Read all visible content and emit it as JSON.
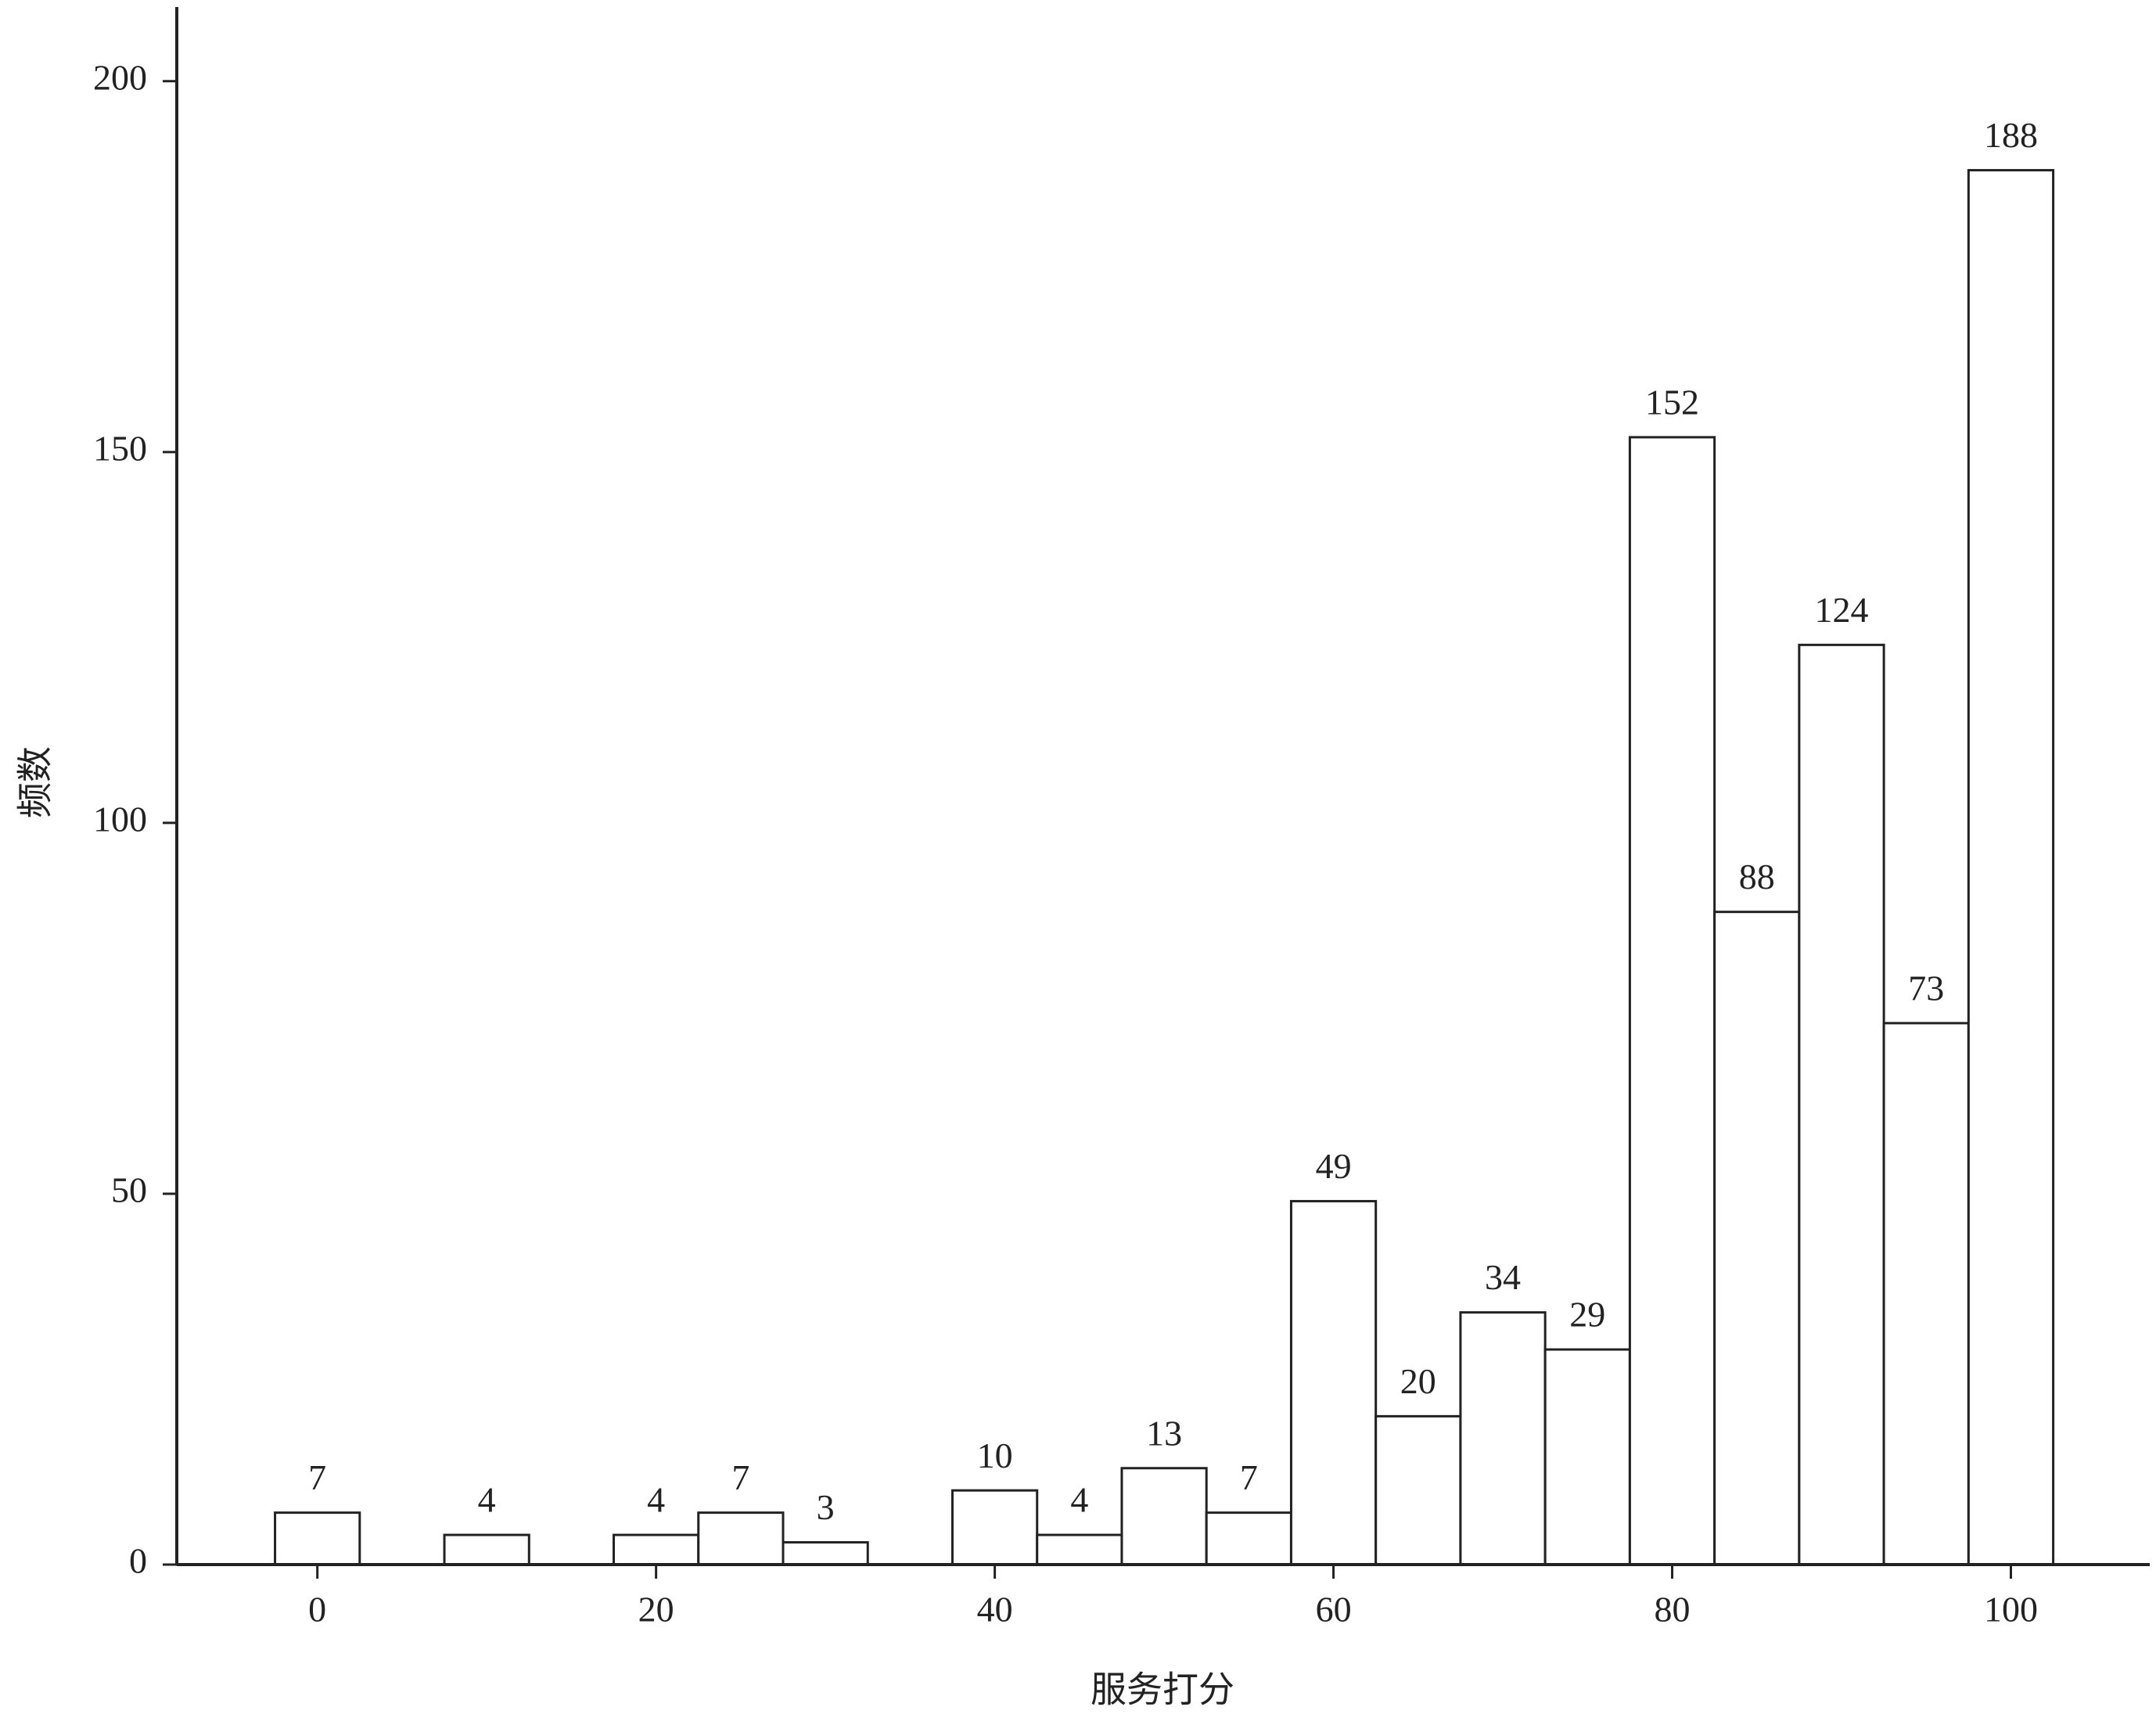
{
  "chart_data": {
    "type": "histogram",
    "x_label": "服务打分",
    "y_label": "频数",
    "bins": [
      -2.5,
      2.5,
      7.5,
      12.5,
      17.5,
      22.5,
      27.5,
      32.5,
      37.5,
      42.5,
      47.5,
      52.5,
      57.5,
      62.5,
      67.5,
      72.5,
      77.5,
      82.5,
      87.5,
      92.5,
      97.5,
      102.5
    ],
    "values": [
      7,
      0,
      4,
      0,
      4,
      7,
      3,
      0,
      10,
      4,
      13,
      7,
      49,
      20,
      34,
      29,
      152,
      88,
      124,
      73,
      188
    ],
    "color": "#ffffff",
    "edgecolor": "#222222",
    "xlim": [
      -8.3,
      108.2
    ],
    "xticks": [
      0,
      20,
      40,
      60,
      80,
      100
    ],
    "ylim": [
      0,
      210
    ],
    "yticks": [
      0,
      50,
      100,
      150,
      200
    ]
  }
}
